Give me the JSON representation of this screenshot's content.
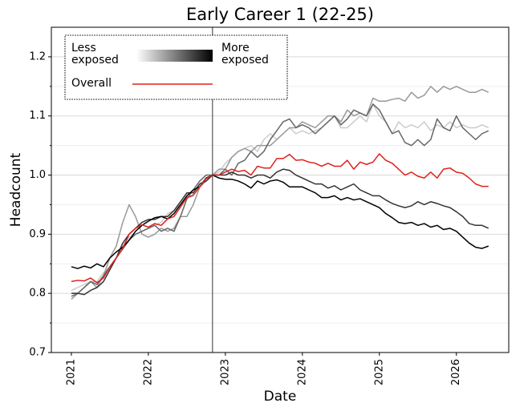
{
  "chart_data": {
    "type": "line",
    "title": "Early Career 1 (22-25)",
    "x_label": "Date",
    "y_label": "Headcount",
    "x": [
      2021,
      2021.083,
      2021.167,
      2021.25,
      2021.333,
      2021.417,
      2021.5,
      2021.583,
      2021.667,
      2021.75,
      2021.833,
      2021.917,
      2022,
      2022.083,
      2022.167,
      2022.25,
      2022.333,
      2022.417,
      2022.5,
      2022.583,
      2022.667,
      2022.75,
      2022.833,
      2022.917,
      2023,
      2023.083,
      2023.167,
      2023.25,
      2023.333,
      2023.417,
      2023.5,
      2023.583,
      2023.667,
      2023.75,
      2023.833,
      2023.917,
      2024,
      2024.083,
      2024.167,
      2024.25,
      2024.333,
      2024.417,
      2024.5,
      2024.583,
      2024.667,
      2024.75,
      2024.833,
      2024.917,
      2025,
      2025.083,
      2025.167,
      2025.25,
      2025.333,
      2025.417,
      2025.5,
      2025.583,
      2025.667,
      2025.75,
      2025.833,
      2025.917,
      2026,
      2026.083,
      2026.167,
      2026.25,
      2026.333,
      2026.417
    ],
    "series": [
      {
        "color": "#cccccc",
        "values": [
          0.805,
          0.81,
          0.815,
          0.82,
          0.82,
          0.835,
          0.845,
          0.86,
          0.88,
          0.895,
          0.9,
          0.905,
          0.91,
          0.915,
          0.92,
          0.935,
          0.94,
          0.95,
          0.96,
          0.965,
          0.985,
          0.995,
          1.0,
          1.005,
          1.02,
          1.03,
          1.04,
          1.045,
          1.05,
          1.04,
          1.06,
          1.07,
          1.06,
          1.07,
          1.08,
          1.07,
          1.075,
          1.07,
          1.075,
          1.08,
          1.09,
          1.1,
          1.08,
          1.08,
          1.09,
          1.1,
          1.09,
          1.12,
          1.1,
          1.09,
          1.07,
          1.09,
          1.08,
          1.085,
          1.08,
          1.09,
          1.075,
          1.085,
          1.08,
          1.09,
          1.08,
          1.085,
          1.08,
          1.08,
          1.085,
          1.08
        ]
      },
      {
        "color": "#999999",
        "values": [
          0.79,
          0.8,
          0.81,
          0.82,
          0.81,
          0.83,
          0.86,
          0.88,
          0.92,
          0.95,
          0.93,
          0.9,
          0.895,
          0.9,
          0.91,
          0.905,
          0.91,
          0.93,
          0.93,
          0.95,
          0.98,
          0.99,
          1.0,
          1.01,
          1.01,
          1.03,
          1.04,
          1.045,
          1.04,
          1.05,
          1.05,
          1.05,
          1.06,
          1.07,
          1.08,
          1.08,
          1.09,
          1.085,
          1.08,
          1.09,
          1.1,
          1.1,
          1.09,
          1.11,
          1.1,
          1.105,
          1.1,
          1.13,
          1.125,
          1.125,
          1.128,
          1.13,
          1.125,
          1.14,
          1.13,
          1.135,
          1.15,
          1.14,
          1.15,
          1.145,
          1.15,
          1.145,
          1.14,
          1.14,
          1.145,
          1.14
        ]
      },
      {
        "color": "#666666",
        "values": [
          0.795,
          0.8,
          0.81,
          0.82,
          0.815,
          0.83,
          0.845,
          0.86,
          0.875,
          0.89,
          0.9,
          0.905,
          0.91,
          0.915,
          0.905,
          0.91,
          0.905,
          0.93,
          0.96,
          0.975,
          0.99,
          1.0,
          1.0,
          1.0,
          1.01,
          1.0,
          1.02,
          1.025,
          1.04,
          1.03,
          1.04,
          1.06,
          1.075,
          1.09,
          1.095,
          1.08,
          1.085,
          1.08,
          1.07,
          1.08,
          1.09,
          1.1,
          1.085,
          1.095,
          1.11,
          1.105,
          1.1,
          1.12,
          1.11,
          1.09,
          1.07,
          1.075,
          1.055,
          1.05,
          1.06,
          1.05,
          1.06,
          1.095,
          1.08,
          1.075,
          1.1,
          1.08,
          1.07,
          1.06,
          1.07,
          1.075
        ]
      },
      {
        "color": "#333333",
        "values": [
          0.8,
          0.8,
          0.798,
          0.805,
          0.81,
          0.82,
          0.84,
          0.86,
          0.885,
          0.9,
          0.91,
          0.92,
          0.925,
          0.925,
          0.93,
          0.93,
          0.94,
          0.955,
          0.97,
          0.97,
          0.985,
          0.99,
          1.0,
          1.0,
          1.0,
          1.005,
          1.0,
          1.0,
          0.995,
          1.0,
          1.0,
          0.995,
          1.005,
          1.01,
          1.008,
          1.0,
          0.995,
          0.99,
          0.985,
          0.985,
          0.978,
          0.982,
          0.975,
          0.98,
          0.985,
          0.975,
          0.97,
          0.965,
          0.965,
          0.958,
          0.952,
          0.948,
          0.945,
          0.948,
          0.955,
          0.95,
          0.955,
          0.952,
          0.948,
          0.945,
          0.938,
          0.93,
          0.918,
          0.915,
          0.915,
          0.91
        ]
      },
      {
        "color": "#000000",
        "values": [
          0.845,
          0.842,
          0.846,
          0.843,
          0.85,
          0.845,
          0.86,
          0.87,
          0.878,
          0.89,
          0.905,
          0.915,
          0.922,
          0.928,
          0.93,
          0.926,
          0.935,
          0.95,
          0.965,
          0.975,
          0.98,
          0.995,
          1.0,
          0.995,
          0.993,
          0.993,
          0.99,
          0.985,
          0.978,
          0.99,
          0.985,
          0.99,
          0.992,
          0.988,
          0.98,
          0.98,
          0.98,
          0.975,
          0.97,
          0.962,
          0.962,
          0.965,
          0.958,
          0.962,
          0.958,
          0.96,
          0.955,
          0.95,
          0.945,
          0.935,
          0.928,
          0.92,
          0.918,
          0.92,
          0.915,
          0.918,
          0.912,
          0.915,
          0.908,
          0.91,
          0.905,
          0.895,
          0.885,
          0.878,
          0.876,
          0.88
        ]
      },
      {
        "name": "Overall",
        "color": "#e0201b",
        "values": [
          0.82,
          0.822,
          0.821,
          0.826,
          0.818,
          0.826,
          0.845,
          0.86,
          0.876,
          0.9,
          0.91,
          0.916,
          0.912,
          0.918,
          0.915,
          0.926,
          0.93,
          0.946,
          0.962,
          0.966,
          0.98,
          0.994,
          1.0,
          1.0,
          1.005,
          1.01,
          1.006,
          1.008,
          1.0,
          1.015,
          1.012,
          1.012,
          1.028,
          1.028,
          1.035,
          1.025,
          1.026,
          1.022,
          1.02,
          1.015,
          1.02,
          1.015,
          1.015,
          1.025,
          1.01,
          1.022,
          1.018,
          1.022,
          1.036,
          1.025,
          1.02,
          1.01,
          1.0,
          1.005,
          0.998,
          0.995,
          1.005,
          0.995,
          1.01,
          1.012,
          1.005,
          1.003,
          0.995,
          0.985,
          0.981,
          0.981
        ]
      }
    ],
    "xlim": [
      2020.74,
      2026.68
    ],
    "xticks": [
      2021,
      2022,
      2023,
      2024,
      2025,
      2026
    ],
    "ylim": [
      0.7,
      1.25
    ],
    "yticks": [
      0.7,
      0.8,
      0.9,
      {
        "value": 1,
        "label": "1.0"
      },
      1.1,
      1.2
    ],
    "yminorticks": [
      0.75,
      0.85,
      0.95,
      1.05,
      1.15
    ],
    "grid": true,
    "vline": 2022.833,
    "legend": {
      "position": "upper left",
      "low_label": "Less exposed",
      "high_label": "More exposed",
      "gradient": [
        "#ffffff",
        "#000000"
      ]
    }
  }
}
